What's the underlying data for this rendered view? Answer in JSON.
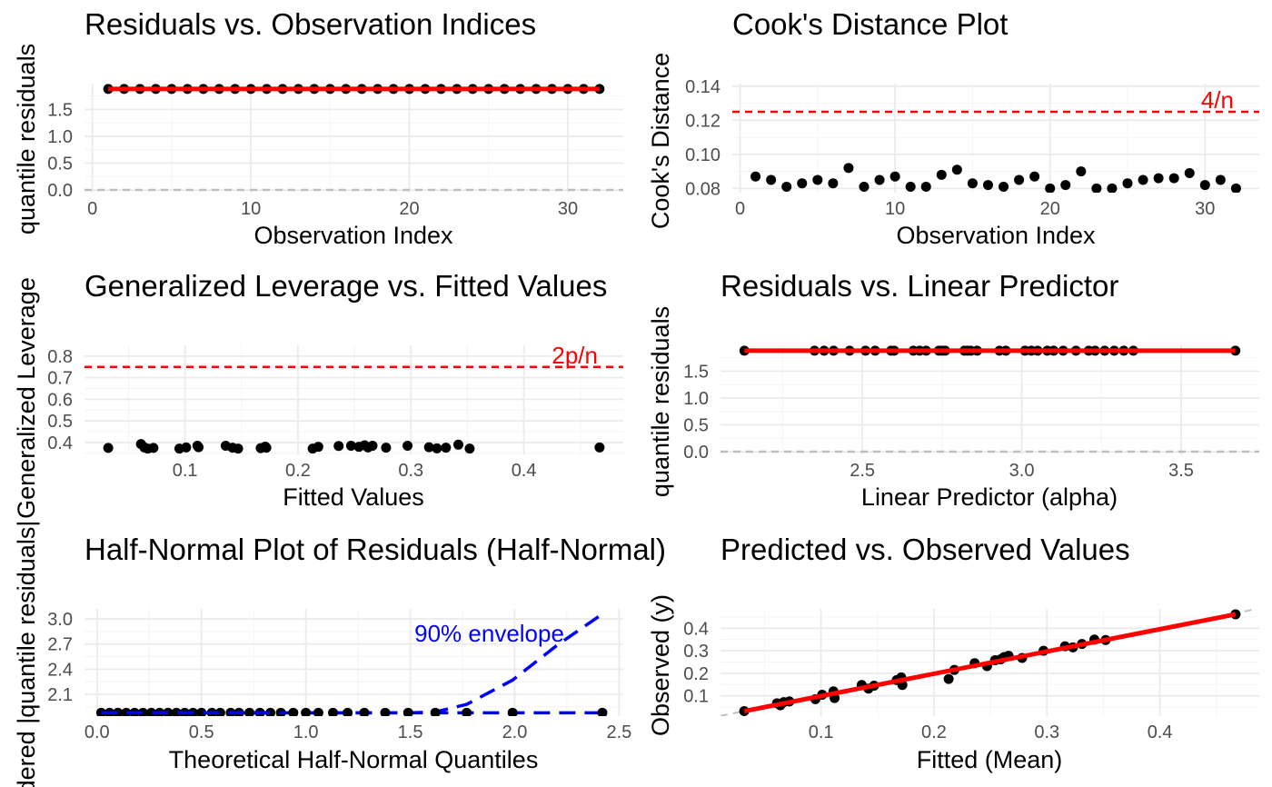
{
  "colors": {
    "points": "#000000",
    "line": "#ff0000",
    "reference": "#bebebe",
    "threshold": "#ff0000",
    "envelope": "#0000ff",
    "grid": "#ebebeb",
    "tick_text": "#4d4d4d"
  },
  "chart_data": [
    {
      "type": "scatter",
      "title": "Residuals vs. Observation Indices",
      "xlabel": "Observation Index",
      "ylabel": "quantile residuals",
      "x": [
        1,
        2,
        3,
        4,
        5,
        6,
        7,
        8,
        9,
        10,
        11,
        12,
        13,
        14,
        15,
        16,
        17,
        18,
        19,
        20,
        21,
        22,
        23,
        24,
        25,
        26,
        27,
        28,
        29,
        30,
        31,
        32
      ],
      "y": [
        1.88,
        1.88,
        1.88,
        1.88,
        1.88,
        1.88,
        1.88,
        1.88,
        1.88,
        1.88,
        1.88,
        1.88,
        1.88,
        1.88,
        1.88,
        1.88,
        1.88,
        1.88,
        1.88,
        1.88,
        1.88,
        1.88,
        1.88,
        1.88,
        1.88,
        1.88,
        1.88,
        1.88,
        1.88,
        1.88,
        1.88,
        1.88
      ],
      "xlim": [
        -0.5,
        33.5
      ],
      "ylim": [
        -0.05,
        1.98
      ],
      "xticks": [
        0,
        10,
        20,
        30
      ],
      "xtick_labels": [
        "0",
        "10",
        "20",
        "30"
      ],
      "yticks": [
        0,
        0.5,
        1,
        1.5
      ],
      "ytick_labels": [
        "0.0",
        "0.5",
        "1.0",
        "1.5"
      ],
      "smooth": {
        "x": [
          1,
          32
        ],
        "y": [
          1.88,
          1.88
        ]
      },
      "hline": {
        "y": 0,
        "style": "dashed",
        "color": "#bebebe"
      },
      "grid": true
    },
    {
      "type": "scatter",
      "title": "Cook's Distance Plot",
      "xlabel": "Observation Index",
      "ylabel": "Cook's Distance",
      "x": [
        1,
        2,
        3,
        4,
        5,
        6,
        7,
        8,
        9,
        10,
        11,
        12,
        13,
        14,
        15,
        16,
        17,
        18,
        19,
        20,
        21,
        22,
        23,
        24,
        25,
        26,
        27,
        28,
        29,
        30,
        31,
        32
      ],
      "y": [
        0.087,
        0.085,
        0.081,
        0.083,
        0.085,
        0.083,
        0.092,
        0.081,
        0.085,
        0.087,
        0.081,
        0.081,
        0.088,
        0.091,
        0.083,
        0.082,
        0.081,
        0.085,
        0.087,
        0.08,
        0.082,
        0.09,
        0.08,
        0.08,
        0.083,
        0.085,
        0.086,
        0.086,
        0.089,
        0.082,
        0.085,
        0.08
      ],
      "xlim": [
        -0.5,
        33.5
      ],
      "ylim": [
        0.0775,
        0.1415
      ],
      "xticks": [
        0,
        10,
        20,
        30
      ],
      "xtick_labels": [
        "0",
        "10",
        "20",
        "30"
      ],
      "yticks": [
        0.08,
        0.1,
        0.12,
        0.14
      ],
      "ytick_labels": [
        "0.08",
        "0.10",
        "0.12",
        "0.14"
      ],
      "hline": {
        "y": 0.125,
        "style": "dashed",
        "color": "#ff0000",
        "label": "4/n"
      },
      "grid": true
    },
    {
      "type": "scatter",
      "title": "Generalized Leverage vs. Fitted Values",
      "xlabel": "Fitted Values",
      "ylabel": "Generalized Leverage",
      "x": [
        0.032,
        0.061,
        0.064,
        0.067,
        0.072,
        0.095,
        0.101,
        0.111,
        0.112,
        0.136,
        0.142,
        0.147,
        0.167,
        0.171,
        0.172,
        0.213,
        0.218,
        0.236,
        0.247,
        0.254,
        0.259,
        0.262,
        0.266,
        0.278,
        0.297,
        0.316,
        0.323,
        0.331,
        0.342,
        0.352,
        0.467
      ],
      "y": [
        0.375,
        0.393,
        0.377,
        0.372,
        0.375,
        0.372,
        0.377,
        0.385,
        0.378,
        0.385,
        0.376,
        0.372,
        0.374,
        0.381,
        0.376,
        0.372,
        0.38,
        0.384,
        0.385,
        0.38,
        0.387,
        0.377,
        0.385,
        0.376,
        0.385,
        0.378,
        0.373,
        0.376,
        0.39,
        0.372,
        0.377
      ],
      "xlim": [
        0.011,
        0.488
      ],
      "ylim": [
        0.345,
        0.85
      ],
      "xticks": [
        0.1,
        0.2,
        0.3,
        0.4
      ],
      "xtick_labels": [
        "0.1",
        "0.2",
        "0.3",
        "0.4"
      ],
      "yticks": [
        0.4,
        0.5,
        0.6,
        0.7,
        0.8
      ],
      "ytick_labels": [
        "0.4",
        "0.5",
        "0.6",
        "0.7",
        "0.8"
      ],
      "hline": {
        "y": 0.75,
        "style": "dashed",
        "color": "#ff0000",
        "label": "2p/n"
      },
      "grid": true
    },
    {
      "type": "scatter",
      "title": "Residuals vs. Linear Predictor",
      "xlabel": "Linear Predictor (alpha)",
      "ylabel": "quantile residuals",
      "x": [
        2.13,
        2.35,
        2.38,
        2.41,
        2.46,
        2.51,
        2.54,
        2.59,
        2.6,
        2.66,
        2.68,
        2.7,
        2.74,
        2.75,
        2.76,
        2.82,
        2.83,
        2.84,
        2.86,
        2.93,
        2.95,
        3.01,
        3.03,
        3.05,
        3.08,
        3.1,
        3.13,
        3.17,
        3.21,
        3.23,
        3.26,
        3.29,
        3.32,
        3.35,
        3.67
      ],
      "y": [
        1.88,
        1.88,
        1.88,
        1.88,
        1.88,
        1.88,
        1.88,
        1.88,
        1.88,
        1.88,
        1.88,
        1.88,
        1.88,
        1.88,
        1.88,
        1.88,
        1.88,
        1.88,
        1.88,
        1.88,
        1.88,
        1.88,
        1.88,
        1.88,
        1.88,
        1.88,
        1.88,
        1.88,
        1.88,
        1.88,
        1.88,
        1.88,
        1.88,
        1.88,
        1.88
      ],
      "xlim": [
        2.055,
        3.745
      ],
      "ylim": [
        -0.05,
        1.98
      ],
      "xticks": [
        2.5,
        3.0,
        3.5
      ],
      "xtick_labels": [
        "2.5",
        "3.0",
        "3.5"
      ],
      "yticks": [
        0,
        0.5,
        1,
        1.5
      ],
      "ytick_labels": [
        "0.0",
        "0.5",
        "1.0",
        "1.5"
      ],
      "smooth": {
        "x": [
          2.13,
          3.67
        ],
        "y": [
          1.88,
          1.88
        ]
      },
      "hline": {
        "y": 0,
        "style": "dashed",
        "color": "#bebebe"
      },
      "grid": true
    },
    {
      "type": "scatter",
      "title": "Half-Normal Plot of Residuals (Half-Normal)",
      "xlabel": "Theoretical Half-Normal Quantiles",
      "ylabel": "Ordered |quantile residuals|",
      "x": [
        0.02,
        0.06,
        0.1,
        0.14,
        0.18,
        0.22,
        0.26,
        0.3,
        0.34,
        0.38,
        0.42,
        0.46,
        0.5,
        0.55,
        0.59,
        0.64,
        0.68,
        0.73,
        0.78,
        0.83,
        0.88,
        0.94,
        1.0,
        1.06,
        1.13,
        1.2,
        1.28,
        1.38,
        1.49,
        1.62,
        1.77,
        1.99,
        2.42
      ],
      "y": [
        1.88,
        1.88,
        1.88,
        1.88,
        1.88,
        1.88,
        1.88,
        1.88,
        1.88,
        1.88,
        1.88,
        1.88,
        1.88,
        1.88,
        1.88,
        1.88,
        1.88,
        1.88,
        1.88,
        1.88,
        1.88,
        1.88,
        1.88,
        1.88,
        1.88,
        1.88,
        1.88,
        1.88,
        1.88,
        1.88,
        1.88,
        1.88,
        1.88
      ],
      "xlim": [
        -0.06,
        2.52
      ],
      "ylim": [
        1.84,
        3.12
      ],
      "xticks": [
        0,
        0.5,
        1.0,
        1.5,
        2.0,
        2.5
      ],
      "xtick_labels": [
        "0.0",
        "0.5",
        "1.0",
        "1.5",
        "2.0",
        "2.5"
      ],
      "yticks": [
        2.1,
        2.4,
        2.7,
        3.0
      ],
      "ytick_labels": [
        "2.1",
        "2.4",
        "2.7",
        "3.0"
      ],
      "envelope": {
        "label": "90% envelope",
        "lower": {
          "x": [
            0.02,
            2.42
          ],
          "y": [
            1.88,
            1.88
          ]
        },
        "upper": {
          "x": [
            0.02,
            0.5,
            1.0,
            1.3,
            1.5,
            1.62,
            1.77,
            1.99,
            2.2,
            2.42
          ],
          "y": [
            1.88,
            1.88,
            1.88,
            1.88,
            1.88,
            1.89,
            1.98,
            2.27,
            2.68,
            3.06
          ]
        }
      },
      "grid": true
    },
    {
      "type": "scatter",
      "title": "Predicted vs. Observed Values",
      "xlabel": "Fitted (Mean)",
      "ylabel": "Observed (y)",
      "x": [
        0.032,
        0.061,
        0.064,
        0.067,
        0.072,
        0.095,
        0.101,
        0.111,
        0.112,
        0.136,
        0.142,
        0.147,
        0.167,
        0.171,
        0.172,
        0.213,
        0.218,
        0.236,
        0.247,
        0.254,
        0.259,
        0.262,
        0.266,
        0.278,
        0.297,
        0.316,
        0.323,
        0.331,
        0.342,
        0.352,
        0.467
      ],
      "y": [
        0.032,
        0.067,
        0.058,
        0.072,
        0.075,
        0.085,
        0.105,
        0.12,
        0.09,
        0.148,
        0.132,
        0.145,
        0.17,
        0.182,
        0.148,
        0.175,
        0.215,
        0.245,
        0.232,
        0.258,
        0.262,
        0.272,
        0.278,
        0.268,
        0.3,
        0.32,
        0.315,
        0.33,
        0.35,
        0.348,
        0.462
      ],
      "xlim": [
        0.011,
        0.488
      ],
      "ylim": [
        0.01,
        0.486
      ],
      "xticks": [
        0.1,
        0.2,
        0.3,
        0.4
      ],
      "xtick_labels": [
        "0.1",
        "0.2",
        "0.3",
        "0.4"
      ],
      "yticks": [
        0.1,
        0.2,
        0.3,
        0.4
      ],
      "ytick_labels": [
        "0.1",
        "0.2",
        "0.3",
        "0.4"
      ],
      "fit_line": {
        "x": [
          0.032,
          0.467
        ],
        "y": [
          0.032,
          0.462
        ]
      },
      "identity_line": {
        "style": "dashed",
        "color": "#bebebe"
      },
      "grid": true
    }
  ]
}
